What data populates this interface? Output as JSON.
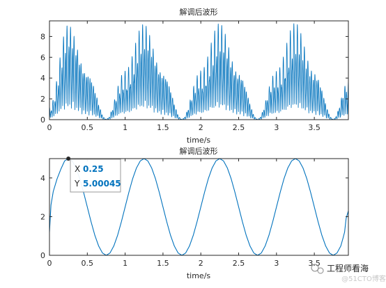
{
  "colors": {
    "line": "#0072BD",
    "axis": "#262626",
    "tip_value": "#0072BD"
  },
  "chart_data": [
    {
      "type": "line",
      "title": "解调后波形",
      "xlabel": "time/s",
      "ylabel": "",
      "xlim": [
        0,
        3.95
      ],
      "ylim": [
        0,
        9.5
      ],
      "xticks": [
        "0",
        "0.5",
        "1",
        "1.5",
        "2",
        "2.5",
        "3",
        "3.5"
      ],
      "yticks": [
        "0",
        "2",
        "4",
        "6",
        "8"
      ],
      "grid": false,
      "series": [
        {
          "style": "rectified carrier under envelope",
          "envelope_peak": 9.4,
          "envelope_period": 1.0,
          "peak_times": [
            0.25,
            1.25,
            2.25,
            3.25
          ],
          "trough_times": [
            0.75,
            1.75,
            2.75,
            3.75
          ],
          "x": [
            0.0,
            0.25,
            0.5,
            0.75,
            1.0,
            1.25,
            1.5,
            1.75,
            2.0,
            2.25,
            2.5,
            2.75,
            3.0,
            3.25,
            3.5,
            3.75,
            3.95
          ],
          "y_max": [
            1.2,
            9.4,
            4.7,
            0.05,
            4.7,
            9.4,
            4.7,
            0.05,
            4.7,
            9.4,
            4.7,
            0.05,
            4.7,
            9.4,
            4.7,
            0.05,
            3.8
          ]
        }
      ]
    },
    {
      "type": "line",
      "title": "解调后波形",
      "xlabel": "time/s",
      "ylabel": "",
      "xlim": [
        0,
        3.95
      ],
      "ylim": [
        0,
        5
      ],
      "xticks": [
        "0",
        "0.5",
        "1",
        "1.5",
        "2",
        "2.5",
        "3",
        "3.5"
      ],
      "yticks": [
        "0",
        "2",
        "4"
      ],
      "grid": false,
      "series": [
        {
          "x": [
            0.0,
            0.02,
            0.05,
            0.1,
            0.15,
            0.2,
            0.25,
            0.3,
            0.35,
            0.4,
            0.45,
            0.5,
            0.55,
            0.6,
            0.65,
            0.7,
            0.75,
            0.8,
            0.85,
            0.9,
            0.95,
            1.0,
            1.05,
            1.1,
            1.15,
            1.2,
            1.25,
            1.3,
            1.35,
            1.4,
            1.45,
            1.5,
            1.55,
            1.6,
            1.65,
            1.7,
            1.75,
            1.8,
            1.85,
            1.9,
            1.95,
            2.0,
            2.05,
            2.1,
            2.15,
            2.2,
            2.25,
            2.3,
            2.35,
            2.4,
            2.45,
            2.5,
            2.55,
            2.6,
            2.65,
            2.7,
            2.75,
            2.8,
            2.85,
            2.9,
            2.95,
            3.0,
            3.05,
            3.1,
            3.15,
            3.2,
            3.25,
            3.3,
            3.35,
            3.4,
            3.45,
            3.5,
            3.55,
            3.6,
            3.65,
            3.7,
            3.75,
            3.8,
            3.85,
            3.88,
            3.9,
            3.92,
            3.95
          ],
          "y": [
            1.2,
            2.6,
            3.3,
            3.95,
            4.45,
            4.88,
            5.0,
            4.88,
            4.52,
            3.97,
            3.27,
            2.5,
            1.73,
            1.03,
            0.48,
            0.12,
            0.0,
            0.12,
            0.48,
            1.03,
            1.73,
            2.5,
            3.27,
            3.97,
            4.52,
            4.88,
            5.0,
            4.88,
            4.52,
            3.97,
            3.27,
            2.5,
            1.73,
            1.03,
            0.48,
            0.12,
            0.0,
            0.12,
            0.48,
            1.03,
            1.73,
            2.5,
            3.27,
            3.97,
            4.52,
            4.88,
            5.0,
            4.88,
            4.52,
            3.97,
            3.27,
            2.5,
            1.73,
            1.03,
            0.48,
            0.12,
            0.0,
            0.12,
            0.48,
            1.03,
            1.73,
            2.5,
            3.27,
            3.97,
            4.52,
            4.88,
            5.0,
            4.88,
            4.52,
            3.97,
            3.27,
            2.5,
            1.73,
            1.03,
            0.48,
            0.12,
            0.0,
            0.12,
            0.48,
            0.9,
            1.2,
            1.9,
            2.3
          ]
        }
      ],
      "datatip": {
        "x_label": "X",
        "x_value": "0.25",
        "y_label": "Y",
        "y_value": "5.00045",
        "at_x": 0.25,
        "at_y": 5.00045
      }
    }
  ],
  "watermark": {
    "text": "工程师看海",
    "faint_text": "@51CTO博客"
  }
}
